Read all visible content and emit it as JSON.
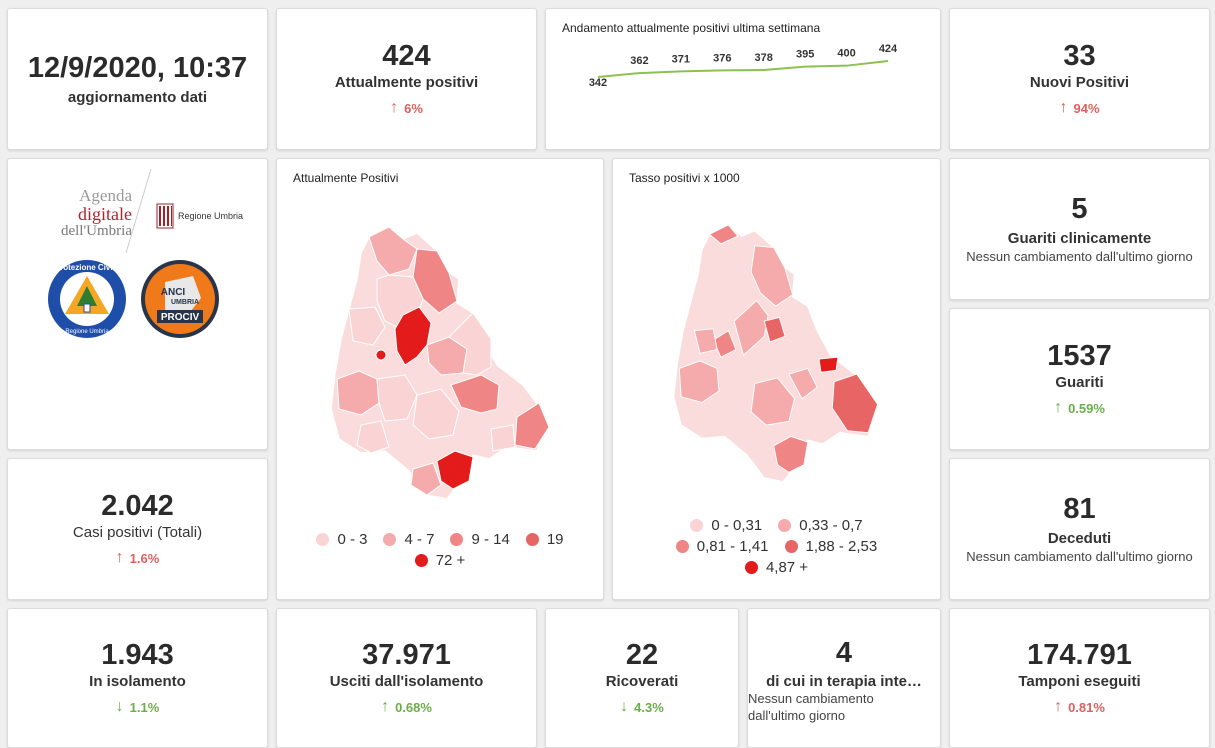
{
  "update": {
    "datetime": "12/9/2020, 10:37",
    "label": "aggiornamento dati"
  },
  "attualmente_positivi": {
    "value": "424",
    "label": "Attualmente positivi",
    "delta": "6%",
    "trend": "up"
  },
  "sparkline": {
    "title": "Andamento attualmente positivi ultima settimana",
    "values": [
      342,
      362,
      371,
      376,
      378,
      395,
      400,
      424
    ],
    "labels": [
      "342",
      "362",
      "371",
      "376",
      "378",
      "395",
      "400",
      "424"
    ],
    "color": "#8cc152"
  },
  "nuovi_positivi": {
    "value": "33",
    "label": "Nuovi Positivi",
    "delta": "94%",
    "trend": "up"
  },
  "logos": {
    "agenda_line1": "Agenda",
    "agenda_line2": "digitale",
    "agenda_line3": "dell'Umbria",
    "regione": "Regione Umbria",
    "protezione_top": "Protezione Civile",
    "protezione_bottom": "Regione Umbria",
    "anci_line1": "ANCI",
    "anci_line2": "UMBRIA",
    "anci_line3": "PROCIV"
  },
  "map_positivi": {
    "title": "Attualmente Positivi",
    "legend": [
      {
        "label": "0 - 3",
        "color": "#fad4d4"
      },
      {
        "label": "4 - 7",
        "color": "#f5abab"
      },
      {
        "label": "9 - 14",
        "color": "#ef8585"
      },
      {
        "label": "19",
        "color": "#e86565"
      },
      {
        "label": "72 +",
        "color": "#e31b1b"
      }
    ]
  },
  "map_tasso": {
    "title": "Tasso positivi x 1000",
    "legend": [
      {
        "label": "0 - 0,31",
        "color": "#fad4d4"
      },
      {
        "label": "0,33 - 0,7",
        "color": "#f5abab"
      },
      {
        "label": "0,81 - 1,41",
        "color": "#ef8585"
      },
      {
        "label": "1,88 - 2,53",
        "color": "#e86565"
      },
      {
        "label": "4,87 +",
        "color": "#e31b1b"
      }
    ]
  },
  "guariti_clinicamente": {
    "value": "5",
    "label": "Guariti clinicamente",
    "sub": "Nessun cambiamento dall'ultimo giorno"
  },
  "guariti": {
    "value": "1537",
    "label": "Guariti",
    "delta": "0.59%",
    "trend": "up"
  },
  "casi_totali": {
    "value": "2.042",
    "label": "Casi positivi (Totali)",
    "delta": "1.6%",
    "trend": "up"
  },
  "deceduti": {
    "value": "81",
    "label": "Deceduti",
    "sub": "Nessun cambiamento dall'ultimo giorno"
  },
  "isolamento": {
    "value": "1.943",
    "label": "In isolamento",
    "delta": "1.1%",
    "trend": "down"
  },
  "usciti": {
    "value": "37.971",
    "label": "Usciti dall'isolamento",
    "delta": "0.68%",
    "trend": "up"
  },
  "ricoverati": {
    "value": "22",
    "label": "Ricoverati",
    "delta": "4.3%",
    "trend": "down"
  },
  "terapia": {
    "value": "4",
    "label": "di cui in terapia inte…",
    "sub": "Nessun cambiamento dall'ultimo giorno"
  },
  "tamponi": {
    "value": "174.791",
    "label": "Tamponi eseguiti",
    "delta": "0.81%",
    "trend": "up"
  },
  "icons": {
    "up": "arrow-up-icon",
    "down": "arrow-down-icon"
  },
  "colors": {
    "up_red": "#e06060",
    "green": "#6cae4a",
    "accent_red": "#e31b1b"
  }
}
